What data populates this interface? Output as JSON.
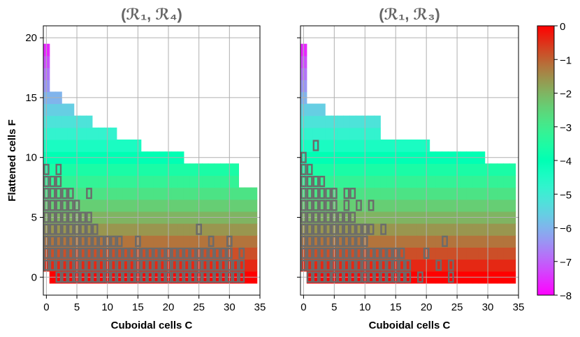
{
  "chart_data": [
    {
      "type": "heatmap",
      "title": "(ℛ₁, ℛ₄)",
      "xlabel": "Cuboidal cells C",
      "ylabel": "Flattened cells F",
      "xlim": [
        -0.5,
        35
      ],
      "ylim": [
        -1.5,
        21
      ],
      "xticks": [
        0,
        5,
        10,
        15,
        20,
        25,
        30,
        35
      ],
      "yticks": [
        0,
        5,
        10,
        15,
        20
      ],
      "grid": true,
      "rows": [
        {
          "F": 0,
          "c_start": 1,
          "c_end": 34
        },
        {
          "F": 1,
          "c_start": 0,
          "c_end": 34
        },
        {
          "F": 2,
          "c_start": 0,
          "c_end": 34
        },
        {
          "F": 3,
          "c_start": 0,
          "c_end": 34
        },
        {
          "F": 4,
          "c_start": 0,
          "c_end": 34
        },
        {
          "F": 5,
          "c_start": 0,
          "c_end": 34
        },
        {
          "F": 6,
          "c_start": 0,
          "c_end": 34
        },
        {
          "F": 7,
          "c_start": 0,
          "c_end": 34
        },
        {
          "F": 8,
          "c_start": 0,
          "c_end": 31
        },
        {
          "F": 9,
          "c_start": 0,
          "c_end": 31
        },
        {
          "F": 10,
          "c_start": 0,
          "c_end": 22
        },
        {
          "F": 11,
          "c_start": 0,
          "c_end": 15
        },
        {
          "F": 12,
          "c_start": 0,
          "c_end": 11
        },
        {
          "F": 13,
          "c_start": 0,
          "c_end": 7
        },
        {
          "F": 14,
          "c_start": 0,
          "c_end": 4
        },
        {
          "F": 15,
          "c_start": 0,
          "c_end": 2
        },
        {
          "F": 16,
          "c_start": 0,
          "c_end": 0
        },
        {
          "F": 17,
          "c_start": 0,
          "c_end": 0
        },
        {
          "F": 18,
          "c_start": 0,
          "c_end": 0
        },
        {
          "F": 19,
          "c_start": 0,
          "c_end": 0
        }
      ],
      "highlighted_cells": [
        [
          2,
          0
        ],
        [
          3,
          0
        ],
        [
          4,
          0
        ],
        [
          5,
          0
        ],
        [
          6,
          0
        ],
        [
          7,
          0
        ],
        [
          8,
          0
        ],
        [
          9,
          0
        ],
        [
          10,
          0
        ],
        [
          11,
          0
        ],
        [
          12,
          0
        ],
        [
          13,
          0
        ],
        [
          14,
          0
        ],
        [
          15,
          0
        ],
        [
          16,
          0
        ],
        [
          17,
          0
        ],
        [
          18,
          0
        ],
        [
          19,
          0
        ],
        [
          20,
          0
        ],
        [
          21,
          0
        ],
        [
          22,
          0
        ],
        [
          23,
          0
        ],
        [
          24,
          0
        ],
        [
          25,
          0
        ],
        [
          26,
          0
        ],
        [
          27,
          0
        ],
        [
          28,
          0
        ],
        [
          29,
          0
        ],
        [
          30,
          0
        ],
        [
          31,
          0
        ],
        [
          32,
          0
        ],
        [
          0,
          1
        ],
        [
          1,
          1
        ],
        [
          2,
          1
        ],
        [
          3,
          1
        ],
        [
          4,
          1
        ],
        [
          5,
          1
        ],
        [
          6,
          1
        ],
        [
          7,
          1
        ],
        [
          8,
          1
        ],
        [
          9,
          1
        ],
        [
          10,
          1
        ],
        [
          11,
          1
        ],
        [
          12,
          1
        ],
        [
          13,
          1
        ],
        [
          14,
          1
        ],
        [
          15,
          1
        ],
        [
          16,
          1
        ],
        [
          17,
          1
        ],
        [
          18,
          1
        ],
        [
          19,
          1
        ],
        [
          20,
          1
        ],
        [
          21,
          1
        ],
        [
          22,
          1
        ],
        [
          23,
          1
        ],
        [
          24,
          1
        ],
        [
          25,
          1
        ],
        [
          26,
          1
        ],
        [
          27,
          1
        ],
        [
          28,
          1
        ],
        [
          29,
          1
        ],
        [
          30,
          1
        ],
        [
          31,
          1
        ],
        [
          32,
          1
        ],
        [
          0,
          2
        ],
        [
          1,
          2
        ],
        [
          2,
          2
        ],
        [
          3,
          2
        ],
        [
          4,
          2
        ],
        [
          5,
          2
        ],
        [
          6,
          2
        ],
        [
          7,
          2
        ],
        [
          8,
          2
        ],
        [
          9,
          2
        ],
        [
          10,
          2
        ],
        [
          11,
          2
        ],
        [
          12,
          2
        ],
        [
          13,
          2
        ],
        [
          14,
          2
        ],
        [
          15,
          2
        ],
        [
          16,
          2
        ],
        [
          17,
          2
        ],
        [
          18,
          2
        ],
        [
          19,
          2
        ],
        [
          20,
          2
        ],
        [
          21,
          2
        ],
        [
          22,
          2
        ],
        [
          23,
          2
        ],
        [
          24,
          2
        ],
        [
          25,
          2
        ],
        [
          26,
          2
        ],
        [
          27,
          2
        ],
        [
          28,
          2
        ],
        [
          29,
          2
        ],
        [
          30,
          2
        ],
        [
          32,
          2
        ],
        [
          0,
          3
        ],
        [
          1,
          3
        ],
        [
          2,
          3
        ],
        [
          3,
          3
        ],
        [
          4,
          3
        ],
        [
          5,
          3
        ],
        [
          6,
          3
        ],
        [
          7,
          3
        ],
        [
          8,
          3
        ],
        [
          9,
          3
        ],
        [
          10,
          3
        ],
        [
          11,
          3
        ],
        [
          12,
          3
        ],
        [
          15,
          3
        ],
        [
          27,
          3
        ],
        [
          30,
          3
        ],
        [
          0,
          4
        ],
        [
          1,
          4
        ],
        [
          2,
          4
        ],
        [
          3,
          4
        ],
        [
          4,
          4
        ],
        [
          5,
          4
        ],
        [
          6,
          4
        ],
        [
          7,
          4
        ],
        [
          8,
          4
        ],
        [
          25,
          4
        ],
        [
          0,
          5
        ],
        [
          1,
          5
        ],
        [
          2,
          5
        ],
        [
          3,
          5
        ],
        [
          4,
          5
        ],
        [
          5,
          5
        ],
        [
          6,
          5
        ],
        [
          7,
          5
        ],
        [
          0,
          6
        ],
        [
          1,
          6
        ],
        [
          2,
          6
        ],
        [
          3,
          6
        ],
        [
          4,
          6
        ],
        [
          5,
          6
        ],
        [
          0,
          7
        ],
        [
          1,
          7
        ],
        [
          2,
          7
        ],
        [
          3,
          7
        ],
        [
          4,
          7
        ],
        [
          7,
          7
        ],
        [
          0,
          8
        ],
        [
          1,
          8
        ],
        [
          2,
          8
        ],
        [
          0,
          9
        ],
        [
          2,
          9
        ]
      ]
    },
    {
      "type": "heatmap",
      "title": "(ℛ₁, ℛ₃)",
      "xlabel": "Cuboidal cells C",
      "ylabel": "",
      "xlim": [
        -0.5,
        35
      ],
      "ylim": [
        -1.5,
        21
      ],
      "xticks": [
        0,
        5,
        10,
        15,
        20,
        25,
        30,
        35
      ],
      "yticks": [
        0,
        5,
        10,
        15,
        20
      ],
      "grid": true,
      "rows": [
        {
          "F": 0,
          "c_start": 1,
          "c_end": 34
        },
        {
          "F": 1,
          "c_start": 0,
          "c_end": 34
        },
        {
          "F": 2,
          "c_start": 0,
          "c_end": 34
        },
        {
          "F": 3,
          "c_start": 0,
          "c_end": 34
        },
        {
          "F": 4,
          "c_start": 0,
          "c_end": 34
        },
        {
          "F": 5,
          "c_start": 0,
          "c_end": 34
        },
        {
          "F": 6,
          "c_start": 0,
          "c_end": 34
        },
        {
          "F": 7,
          "c_start": 0,
          "c_end": 34
        },
        {
          "F": 8,
          "c_start": 0,
          "c_end": 34
        },
        {
          "F": 9,
          "c_start": 0,
          "c_end": 34
        },
        {
          "F": 10,
          "c_start": 0,
          "c_end": 29
        },
        {
          "F": 11,
          "c_start": 0,
          "c_end": 20
        },
        {
          "F": 12,
          "c_start": 0,
          "c_end": 12
        },
        {
          "F": 13,
          "c_start": 0,
          "c_end": 12
        },
        {
          "F": 14,
          "c_start": 0,
          "c_end": 3
        },
        {
          "F": 15,
          "c_start": 0,
          "c_end": 0
        },
        {
          "F": 16,
          "c_start": 0,
          "c_end": 0
        },
        {
          "F": 17,
          "c_start": 0,
          "c_end": 0
        },
        {
          "F": 18,
          "c_start": 0,
          "c_end": 0
        },
        {
          "F": 19,
          "c_start": 0,
          "c_end": 0
        }
      ],
      "highlighted_cells": [
        [
          1,
          0
        ],
        [
          2,
          0
        ],
        [
          3,
          0
        ],
        [
          4,
          0
        ],
        [
          5,
          0
        ],
        [
          6,
          0
        ],
        [
          7,
          0
        ],
        [
          8,
          0
        ],
        [
          9,
          0
        ],
        [
          10,
          0
        ],
        [
          11,
          0
        ],
        [
          12,
          0
        ],
        [
          13,
          0
        ],
        [
          14,
          0
        ],
        [
          15,
          0
        ],
        [
          16,
          0
        ],
        [
          17,
          0
        ],
        [
          19,
          0
        ],
        [
          24,
          0
        ],
        [
          0,
          1
        ],
        [
          1,
          1
        ],
        [
          2,
          1
        ],
        [
          3,
          1
        ],
        [
          4,
          1
        ],
        [
          5,
          1
        ],
        [
          6,
          1
        ],
        [
          7,
          1
        ],
        [
          8,
          1
        ],
        [
          9,
          1
        ],
        [
          10,
          1
        ],
        [
          11,
          1
        ],
        [
          12,
          1
        ],
        [
          13,
          1
        ],
        [
          14,
          1
        ],
        [
          15,
          1
        ],
        [
          16,
          1
        ],
        [
          17,
          1
        ],
        [
          22,
          1
        ],
        [
          24,
          1
        ],
        [
          0,
          2
        ],
        [
          1,
          2
        ],
        [
          2,
          2
        ],
        [
          3,
          2
        ],
        [
          4,
          2
        ],
        [
          5,
          2
        ],
        [
          6,
          2
        ],
        [
          7,
          2
        ],
        [
          8,
          2
        ],
        [
          9,
          2
        ],
        [
          10,
          2
        ],
        [
          11,
          2
        ],
        [
          12,
          2
        ],
        [
          13,
          2
        ],
        [
          14,
          2
        ],
        [
          15,
          2
        ],
        [
          16,
          2
        ],
        [
          20,
          2
        ],
        [
          0,
          3
        ],
        [
          1,
          3
        ],
        [
          2,
          3
        ],
        [
          3,
          3
        ],
        [
          4,
          3
        ],
        [
          5,
          3
        ],
        [
          6,
          3
        ],
        [
          7,
          3
        ],
        [
          8,
          3
        ],
        [
          9,
          3
        ],
        [
          10,
          3
        ],
        [
          23,
          3
        ],
        [
          0,
          4
        ],
        [
          1,
          4
        ],
        [
          2,
          4
        ],
        [
          3,
          4
        ],
        [
          4,
          4
        ],
        [
          5,
          4
        ],
        [
          6,
          4
        ],
        [
          7,
          4
        ],
        [
          8,
          4
        ],
        [
          9,
          4
        ],
        [
          10,
          4
        ],
        [
          11,
          4
        ],
        [
          13,
          4
        ],
        [
          0,
          5
        ],
        [
          1,
          5
        ],
        [
          2,
          5
        ],
        [
          3,
          5
        ],
        [
          4,
          5
        ],
        [
          5,
          5
        ],
        [
          6,
          5
        ],
        [
          7,
          5
        ],
        [
          8,
          5
        ],
        [
          0,
          6
        ],
        [
          1,
          6
        ],
        [
          2,
          6
        ],
        [
          3,
          6
        ],
        [
          4,
          6
        ],
        [
          5,
          6
        ],
        [
          7,
          6
        ],
        [
          9,
          6
        ],
        [
          11,
          6
        ],
        [
          0,
          7
        ],
        [
          1,
          7
        ],
        [
          2,
          7
        ],
        [
          3,
          7
        ],
        [
          4,
          7
        ],
        [
          5,
          7
        ],
        [
          7,
          7
        ],
        [
          8,
          7
        ],
        [
          0,
          8
        ],
        [
          1,
          8
        ],
        [
          2,
          8
        ],
        [
          3,
          8
        ],
        [
          0,
          9
        ],
        [
          1,
          9
        ],
        [
          0,
          10
        ],
        [
          2,
          11
        ]
      ]
    }
  ],
  "colorbar": {
    "min": -8,
    "max": 0,
    "ticks": [
      "0",
      "−1",
      "−2",
      "−3",
      "−4",
      "−5",
      "−6",
      "−7",
      "−8"
    ],
    "colormap": "rainbow"
  },
  "colors": {
    "highlight_outline": "#6b6b6b",
    "grid": "#b0b0b0",
    "title": "#666666"
  }
}
